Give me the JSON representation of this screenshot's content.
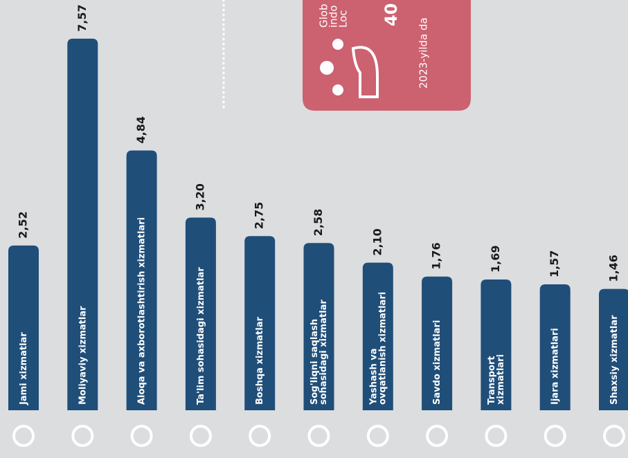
{
  "chart_data": {
    "type": "bar",
    "categories": [
      "Jami xizmatlar",
      "Moliyaviy  xizmatlar",
      "Aloqa va axborotlashtirish xizmatlari",
      "Ta'lim sohasidagi xizmatlar",
      "Boshqa xizmatlar",
      "Sog'liqni saqlash\nsohasidagi xizmatlar",
      "Yashash va\novqatlanish xizmatlari",
      "Savdo xizmatlari",
      "Transport\nxizmatlari",
      "Ijara xizmatlari",
      "Shaxsiy xizmatlar"
    ],
    "values": [
      2.52,
      7.57,
      4.84,
      3.2,
      2.75,
      2.58,
      2.1,
      1.76,
      1.69,
      1.57,
      1.46
    ],
    "value_labels": [
      "2,52",
      "7,57",
      "4,84",
      "3,20",
      "2,75",
      "2,58",
      "2,10",
      "1,76",
      "1,69",
      "1,57",
      "1,46"
    ],
    "color": "#1f4e79",
    "card": {
      "lines": [
        "Glob",
        "indo",
        "Loc"
      ],
      "number": "40",
      "note": "2023-yilda da",
      "color": "#cc6170"
    }
  }
}
